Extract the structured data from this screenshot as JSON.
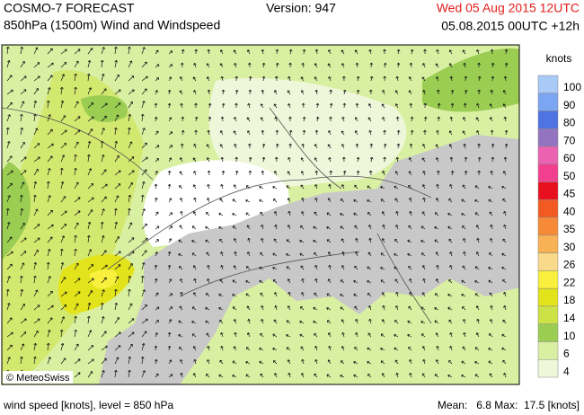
{
  "header": {
    "title": "COSMO-7 FORECAST",
    "subtitle": "850hPa (1500m) Wind and Windspeed",
    "version": "Version: 947",
    "valid_time": "Wed 05 Aug 2015 12UTC",
    "run": "05.08.2015 00UTC +12h"
  },
  "map": {
    "credit": "© MeteoSwiss"
  },
  "legend": {
    "unit": "knots",
    "levels": [
      {
        "label": "100",
        "color": "#a9c9f7"
      },
      {
        "label": "90",
        "color": "#7aa6f2"
      },
      {
        "label": "80",
        "color": "#4f74e2"
      },
      {
        "label": "70",
        "color": "#9473c0"
      },
      {
        "label": "60",
        "color": "#ec62b2"
      },
      {
        "label": "50",
        "color": "#f23f8e"
      },
      {
        "label": "45",
        "color": "#e8101e"
      },
      {
        "label": "40",
        "color": "#f25a22"
      },
      {
        "label": "35",
        "color": "#f68a36"
      },
      {
        "label": "30",
        "color": "#f8b154"
      },
      {
        "label": "26",
        "color": "#f9d98a"
      },
      {
        "label": "22",
        "color": "#f8f03c"
      },
      {
        "label": "18",
        "color": "#e3e31c"
      },
      {
        "label": "14",
        "color": "#cde246"
      },
      {
        "label": "10",
        "color": "#9acd52"
      },
      {
        "label": "6",
        "color": "#d9efa2"
      },
      {
        "label": "4",
        "color": "#eef7d9"
      }
    ]
  },
  "footer": {
    "left": "wind speed [knots], level = 850 hPa",
    "right": "Mean:   6.8 Max:  17.5 [knots]"
  }
}
